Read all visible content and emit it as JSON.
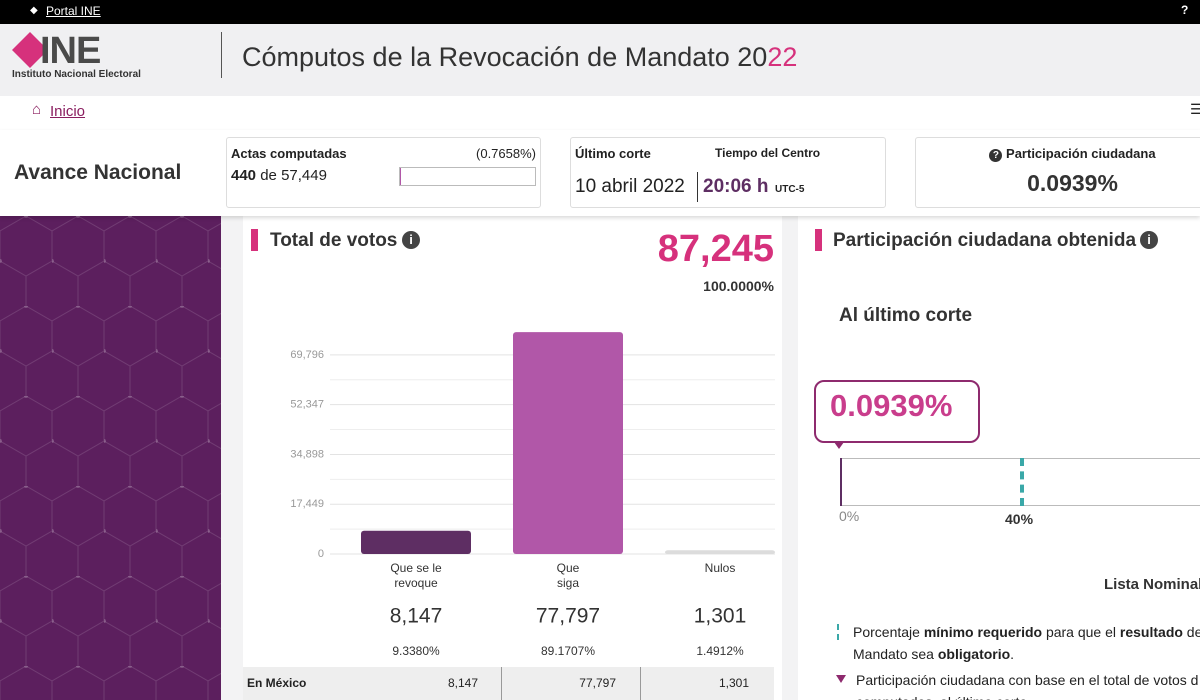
{
  "topbar": {
    "portal": "Portal INE"
  },
  "header": {
    "logo": "INE",
    "logo_sub": "Instituto Nacional Electoral",
    "title": "Cómputos de la Revocación de Mandato 20",
    "title_accent": "22"
  },
  "nav": {
    "home": "Inicio"
  },
  "summary": {
    "heading": "Avance Nacional",
    "actas": {
      "label": "Actas computadas",
      "percent": "(0.7658%)",
      "count": "440",
      "of": "de",
      "total": "57,449"
    },
    "corte": {
      "label": "Último corte",
      "tz_label": "Tiempo del Centro",
      "date": "10 abril 2022",
      "time": "20:06 h",
      "tz": "UTC-5"
    },
    "participacion": {
      "label": "Participación ciudadana",
      "value": "0.0939%"
    }
  },
  "votes": {
    "title": "Total de votos",
    "total": "87,245",
    "total_pct": "100.0000%",
    "table": {
      "rows": [
        [
          "En México",
          "8,147",
          "77,797",
          "1,301"
        ]
      ]
    }
  },
  "chart_data": {
    "type": "bar",
    "categories": [
      "Que se le\nrevoque",
      "Que\nsiga",
      "Nulos"
    ],
    "values": [
      8147,
      77797,
      1301
    ],
    "value_labels": [
      "8,147",
      "77,797",
      "1,301"
    ],
    "percentages": [
      "9.3380%",
      "89.1707%",
      "1.4912%"
    ],
    "colors": [
      "#5e2e63",
      "#b157a8",
      "#dcdcdc"
    ],
    "ylim": [
      0,
      78520
    ],
    "yticks": [
      0,
      {
        "value": 17449,
        "label": "17,449"
      },
      {
        "value": 34898,
        "label": "34,898"
      },
      {
        "value": 52347,
        "label": "52,347"
      },
      {
        "value": 69796,
        "label": "69,796"
      }
    ],
    "grid": true
  },
  "participation": {
    "title": "Participación ciudadana obtenida",
    "subtitle": "Al último corte",
    "value": "0.0939%",
    "scale_min": "0%",
    "threshold": "40%",
    "lista": "Lista Nominal",
    "legend": [
      {
        "lines": [
          [
            "Porcentaje ",
            "mínimo requerido",
            " para que el ",
            "resultado",
            " de la"
          ],
          [
            "Mandato sea ",
            "obligatorio",
            "."
          ]
        ]
      },
      {
        "lines": [
          [
            "Participación ciudadana con base en el total de votos d"
          ],
          [
            "computados, al último corte"
          ]
        ]
      }
    ]
  }
}
